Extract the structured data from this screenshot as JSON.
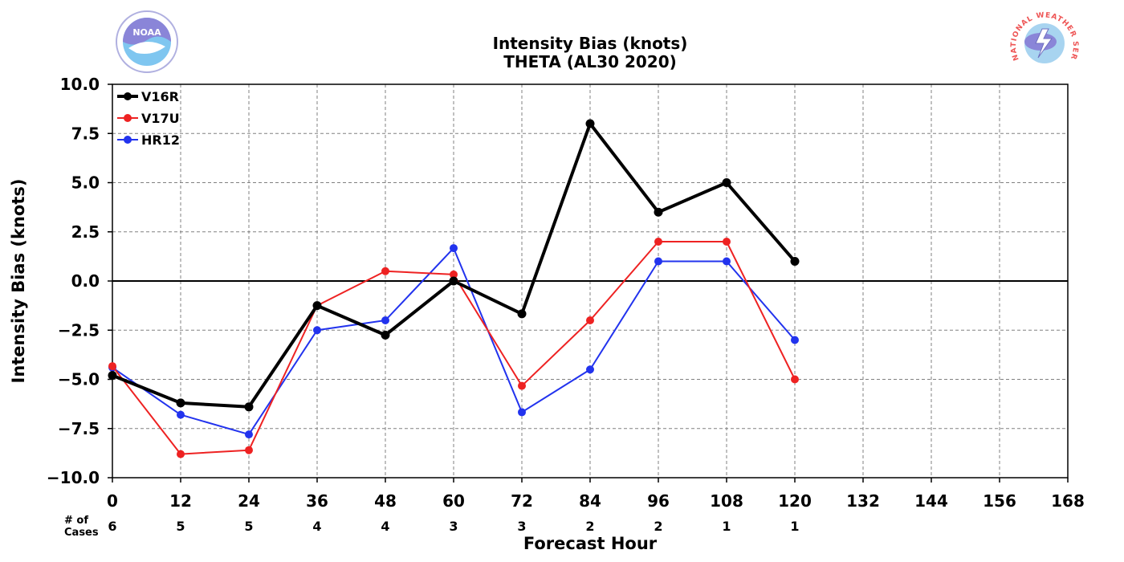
{
  "header": {
    "title_line1": "Intensity Bias (knots)",
    "title_line2": "THETA (AL30 2020)"
  },
  "logos": {
    "left": {
      "text": "NOAA",
      "icon": "noaa-logo"
    },
    "right": {
      "text": "NATIONAL WEATHER SERVICE",
      "icon": "nws-logo"
    }
  },
  "cases": {
    "label_line1": "# of",
    "label_line2": "Cases"
  },
  "chart_data": {
    "type": "line",
    "xlabel": "Forecast Hour",
    "ylabel": "Intensity Bias (knots)",
    "xlim": [
      0,
      168
    ],
    "ylim": [
      -10,
      10
    ],
    "x_ticks": [
      0,
      12,
      24,
      36,
      48,
      60,
      72,
      84,
      96,
      108,
      120,
      132,
      144,
      156,
      168
    ],
    "y_ticks": [
      -10,
      -7.5,
      -5,
      -2.5,
      0,
      2.5,
      5,
      7.5,
      10
    ],
    "y_tick_labels": [
      "−10.0",
      "−7.5",
      "−5.0",
      "−2.5",
      "0.0",
      "2.5",
      "5.0",
      "7.5",
      "10.0"
    ],
    "grid": true,
    "legend_position": "upper-left",
    "case_counts": [
      6,
      5,
      5,
      4,
      4,
      3,
      3,
      2,
      2,
      1,
      1
    ],
    "series": [
      {
        "name": "V16R",
        "color": "#000000",
        "x": [
          0,
          12,
          24,
          36,
          48,
          60,
          72,
          84,
          96,
          108,
          120
        ],
        "values": [
          -4.8,
          -6.2,
          -6.4,
          -1.25,
          -2.75,
          0.0,
          -1.67,
          8.0,
          3.5,
          5.0,
          1.0
        ]
      },
      {
        "name": "V17U",
        "color": "#ee2222",
        "x": [
          0,
          12,
          24,
          36,
          48,
          60,
          72,
          84,
          96,
          108,
          120
        ],
        "values": [
          -4.33,
          -8.8,
          -8.6,
          -1.25,
          0.5,
          0.33,
          -5.33,
          -2.0,
          2.0,
          2.0,
          -5.0
        ]
      },
      {
        "name": "HR12",
        "color": "#2233ee",
        "x": [
          0,
          12,
          24,
          36,
          48,
          60,
          72,
          84,
          96,
          108,
          120
        ],
        "values": [
          -4.4,
          -6.8,
          -7.8,
          -2.5,
          -2.0,
          1.67,
          -6.67,
          -4.5,
          1.0,
          1.0,
          -3.0
        ]
      }
    ]
  }
}
